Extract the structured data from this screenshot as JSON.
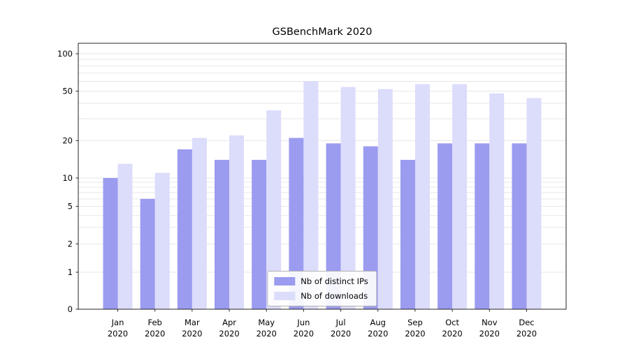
{
  "chart_data": {
    "type": "bar",
    "title": "GSBenchMark 2020",
    "categories": [
      "Jan",
      "Feb",
      "Mar",
      "Apr",
      "May",
      "Jun",
      "Jul",
      "Aug",
      "Sep",
      "Oct",
      "Nov",
      "Dec"
    ],
    "year_label": "2020",
    "series": [
      {
        "name": "Nb of distinct IPs",
        "color": "#9b9bf0",
        "values": [
          10,
          6,
          17,
          14,
          14,
          21,
          19,
          18,
          14,
          19,
          19,
          19
        ]
      },
      {
        "name": "Nb of downloads",
        "color": "#dcdcfb",
        "values": [
          13,
          11,
          21,
          22,
          35,
          60,
          54,
          52,
          57,
          57,
          48,
          44
        ]
      }
    ],
    "yscale": "symlog",
    "yticks": [
      0,
      1,
      2,
      5,
      10,
      20,
      50,
      100
    ],
    "ylim": [
      0,
      130
    ],
    "grid": true,
    "grid_color": "#e7e7e7",
    "axis_color": "#262626",
    "legend_position": "bottom-center"
  }
}
